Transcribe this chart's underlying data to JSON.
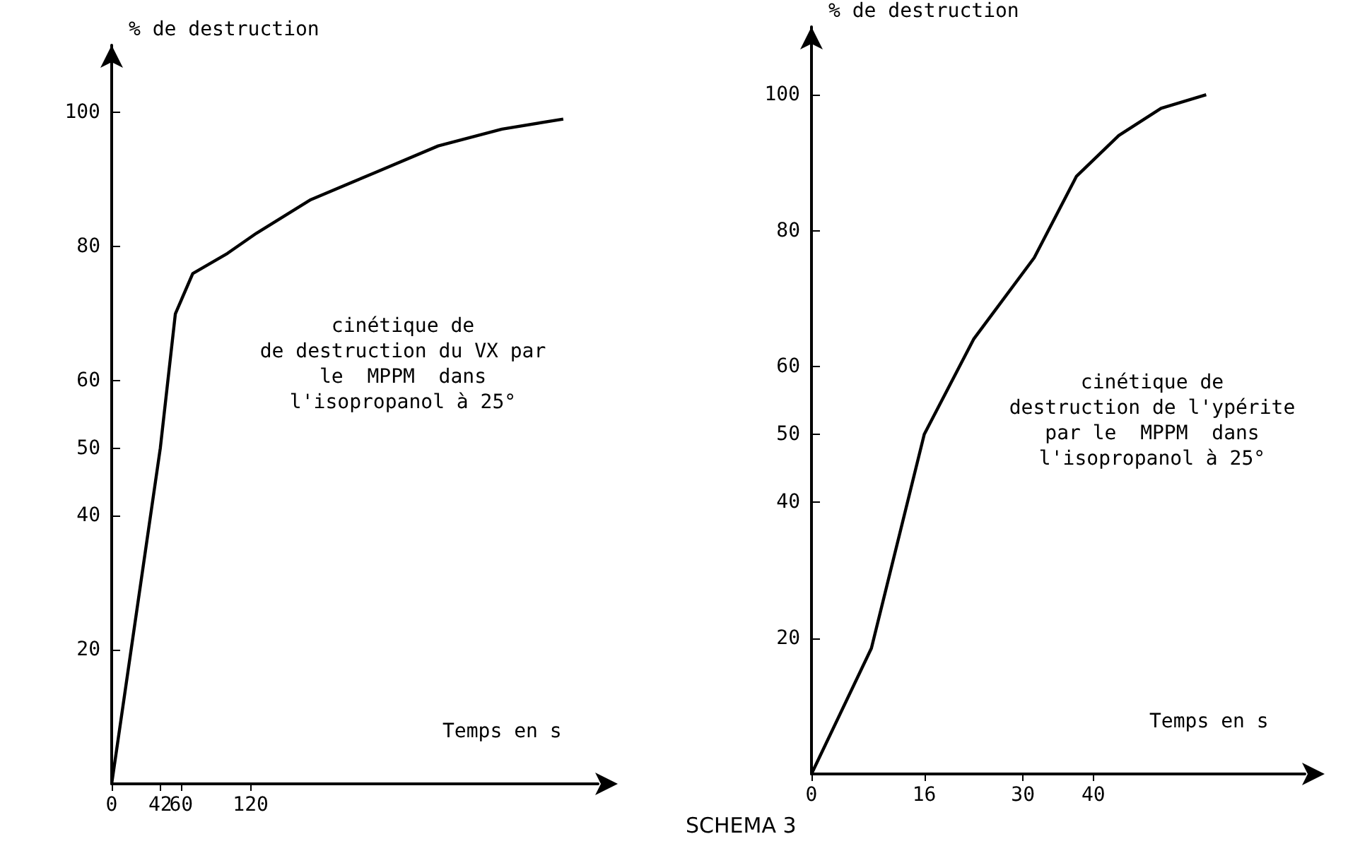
{
  "chart_data": [
    {
      "type": "line",
      "xlabel": "Temps en s",
      "ylabel": "% de destruction",
      "annotations": [
        "cinétique de\nde destruction du VX par\nle  MPPM  dans\nl'isopropanol à 25°"
      ],
      "x": [
        0,
        42,
        55,
        70,
        100,
        125,
        172,
        227,
        282,
        337,
        390
      ],
      "series": [
        {
          "color": "#000000",
          "values": [
            0,
            50,
            70,
            76,
            79,
            82,
            87,
            91,
            95,
            97.5,
            99
          ]
        }
      ],
      "xlim": [
        0,
        420
      ],
      "xticks": [
        0,
        42,
        60,
        120
      ],
      "ylim": [
        0,
        110
      ],
      "yticks": [
        20,
        40,
        50,
        60,
        80,
        100
      ],
      "grid": false,
      "marker": "none"
    },
    {
      "type": "line",
      "title": "SCHEMA 3",
      "xlabel": "Temps en s",
      "ylabel": "% de destruction",
      "annotations": [
        "cinétique de\ndestruction de l'ypérite\npar le  MPPM  dans\nl'isopropanol à 25°"
      ],
      "x": [
        0,
        8.5,
        16,
        23,
        31.6,
        37.6,
        43.6,
        49.6,
        56
      ],
      "series": [
        {
          "color": "#000000",
          "values": [
            0,
            18.5,
            50,
            64,
            76,
            88,
            94,
            98,
            100
          ]
        }
      ],
      "xlim": [
        0,
        70
      ],
      "xticks": [
        0,
        16,
        30,
        40
      ],
      "ylim": [
        0,
        110
      ],
      "yticks": [
        20,
        40,
        50,
        60,
        80,
        100
      ],
      "grid": false,
      "marker": "none"
    }
  ]
}
